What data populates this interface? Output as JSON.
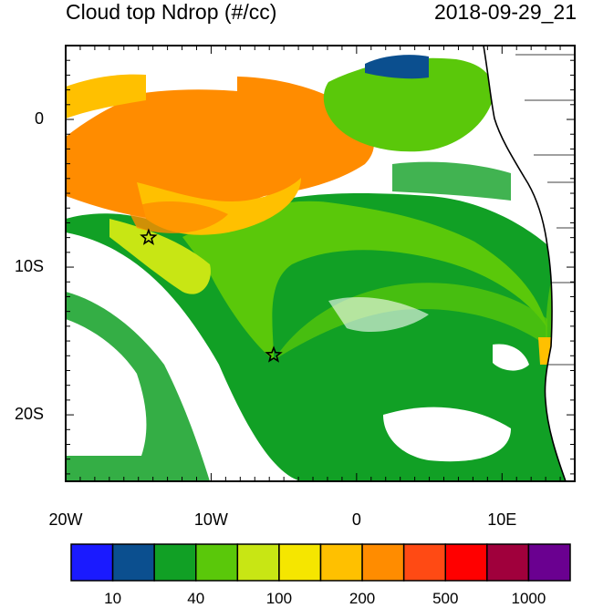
{
  "header": {
    "title": "Cloud top Ndrop (#/cc)",
    "datetime": "2018-09-29_21"
  },
  "axes": {
    "lat_ticks": [
      {
        "label": "0",
        "lat": 0
      },
      {
        "label": "10S",
        "lat": -10
      },
      {
        "label": "20S",
        "lat": -20
      }
    ],
    "lon_ticks": [
      {
        "label": "20W",
        "lon": -20
      },
      {
        "label": "10W",
        "lon": -10
      },
      {
        "label": "0",
        "lon": 0
      },
      {
        "label": "10E",
        "lon": 10
      }
    ],
    "lon_range": [
      -20,
      15
    ],
    "lat_range": [
      -24.5,
      5
    ]
  },
  "markers": [
    {
      "name": "star-marker",
      "lon": -14.3,
      "lat": -8.0
    },
    {
      "name": "star-marker",
      "lon": -5.7,
      "lat": -15.95
    }
  ],
  "colorbar": {
    "colors": [
      "#1a1aff",
      "#0b4f8f",
      "#11a025",
      "#5ac80a",
      "#c8e614",
      "#f5e600",
      "#ffc000",
      "#ff8c00",
      "#ff4a14",
      "#ff0000",
      "#a0003c",
      "#6a0090"
    ],
    "labels": [
      "10",
      "40",
      "100",
      "200",
      "500",
      "1000"
    ]
  }
}
